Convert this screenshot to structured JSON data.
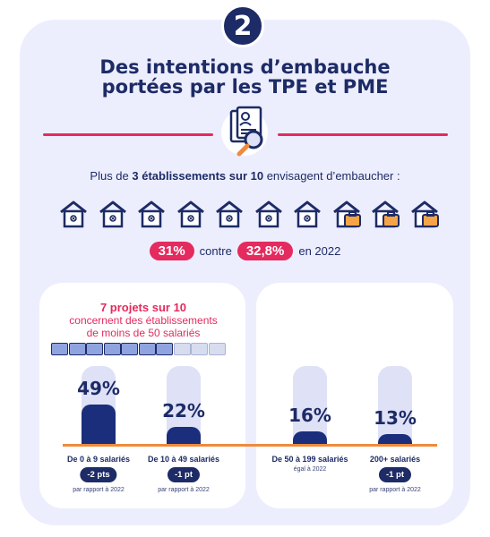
{
  "badge": "2",
  "title_line1": "Des intentions d’embauche",
  "title_line2": "portées par les TPE et PME",
  "lead": {
    "pre": "Plus de ",
    "bold": "3 établissements sur 10",
    "post": " envisagent d’embaucher :"
  },
  "houses": {
    "total": 10,
    "with_briefcase": 3
  },
  "stat": {
    "current": "31%",
    "middle": "contre",
    "previous": "32,8%",
    "suffix": "en 2022"
  },
  "projects": {
    "headline": "7 projets sur 10",
    "line2": "concernent des établissements",
    "line3": "de moins de 50 salariés",
    "filled": 7,
    "total": 10
  },
  "colors": {
    "navy": "#1d2b66",
    "pink": "#e42a5e",
    "orange": "#f08a3c",
    "card": "#edeefd"
  },
  "chart_data": {
    "type": "bar",
    "categories": [
      "De 0 à 9 salariés",
      "De 10 à 49 salariés",
      "De 50 à 199 salariés",
      "200+ salariés"
    ],
    "values": [
      49,
      22,
      16,
      13
    ],
    "labels": [
      "49%",
      "22%",
      "16%",
      "13%"
    ],
    "changes": [
      "-2 pts",
      "-1 pt",
      "",
      "-1 pt"
    ],
    "notes": [
      "par rapport à 2022",
      "par rapport à 2022",
      "égal à 2022",
      "par rapport à 2022"
    ]
  }
}
